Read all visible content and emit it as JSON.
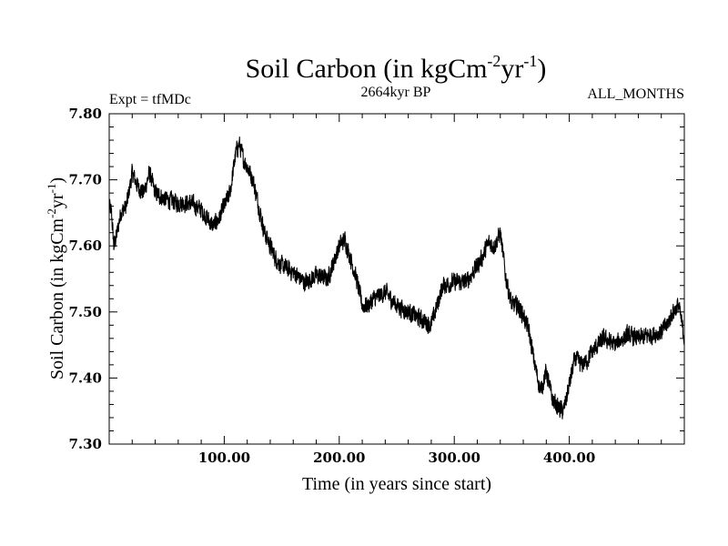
{
  "chart_data": {
    "type": "line",
    "title": {
      "main": "Soil Carbon (in kgCm",
      "exp1": "-2",
      "mid": "yr",
      "exp2": "-1",
      "end": ")"
    },
    "subtitle": "2664kyr BP",
    "experiment": "Expt = tfMDc",
    "months": "ALL_MONTHS",
    "xlabel": "Time (in years since start)",
    "ylabel": {
      "main": "Soil Carbon (in kgCm",
      "exp1": "-2",
      "mid": "yr",
      "exp2": "-1",
      "end": ")"
    },
    "xlim": [
      0,
      500
    ],
    "ylim": [
      7.3,
      7.8
    ],
    "x_ticks": [
      100,
      200,
      300,
      400
    ],
    "x_tick_labels": [
      "100.00",
      "200.00",
      "300.00",
      "400.00"
    ],
    "y_ticks": [
      7.3,
      7.4,
      7.5,
      7.6,
      7.7,
      7.8
    ],
    "y_tick_labels": [
      "7.30",
      "7.40",
      "7.50",
      "7.60",
      "7.70",
      "7.80"
    ],
    "series": [
      {
        "name": "Soil Carbon",
        "noise_amplitude": 0.012,
        "x": [
          0,
          2,
          4,
          7,
          10,
          15,
          20,
          25,
          30,
          35,
          40,
          50,
          60,
          70,
          80,
          90,
          95,
          100,
          105,
          110,
          113,
          117,
          120,
          125,
          130,
          135,
          140,
          145,
          150,
          160,
          170,
          180,
          190,
          200,
          205,
          210,
          215,
          220,
          225,
          230,
          240,
          250,
          260,
          270,
          280,
          290,
          300,
          310,
          320,
          325,
          330,
          335,
          340,
          345,
          350,
          355,
          360,
          365,
          370,
          375,
          380,
          385,
          390,
          395,
          400,
          405,
          410,
          415,
          420,
          430,
          440,
          450,
          460,
          470,
          480,
          485,
          490,
          495,
          500
        ],
        "values": [
          7.66,
          7.65,
          7.6,
          7.62,
          7.65,
          7.66,
          7.71,
          7.69,
          7.68,
          7.71,
          7.68,
          7.67,
          7.665,
          7.665,
          7.655,
          7.63,
          7.64,
          7.66,
          7.68,
          7.74,
          7.755,
          7.73,
          7.72,
          7.7,
          7.66,
          7.62,
          7.6,
          7.58,
          7.57,
          7.56,
          7.545,
          7.555,
          7.55,
          7.6,
          7.61,
          7.58,
          7.55,
          7.51,
          7.51,
          7.52,
          7.53,
          7.51,
          7.5,
          7.49,
          7.48,
          7.54,
          7.545,
          7.545,
          7.57,
          7.585,
          7.605,
          7.6,
          7.62,
          7.55,
          7.51,
          7.51,
          7.495,
          7.47,
          7.42,
          7.38,
          7.41,
          7.37,
          7.355,
          7.35,
          7.39,
          7.43,
          7.42,
          7.425,
          7.44,
          7.46,
          7.45,
          7.465,
          7.46,
          7.465,
          7.47,
          7.48,
          7.5,
          7.51,
          7.46
        ]
      }
    ]
  }
}
